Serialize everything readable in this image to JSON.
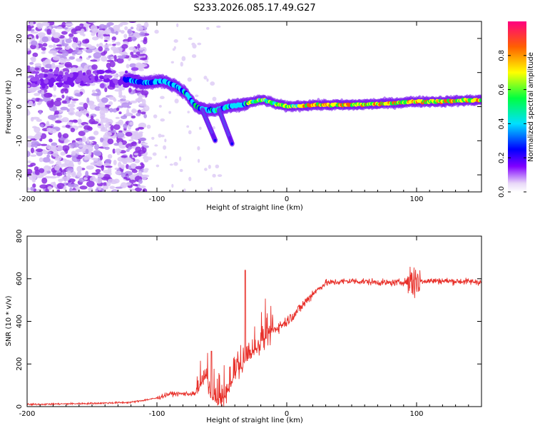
{
  "title": "S233.2026.085.17.49.G27",
  "colors": {
    "snr_line": "#e8302a",
    "axis": "#000000",
    "background": "#ffffff"
  },
  "chart_data": [
    {
      "type": "heatmap",
      "xlabel": "Height of straight line (km)",
      "ylabel": "Frequency (Hz)",
      "xlim": [
        -200,
        150
      ],
      "ylim": [
        -25,
        25
      ],
      "xticks": [
        "-200",
        "-100",
        "0",
        "100"
      ],
      "yticks": [
        "20",
        "10",
        "0",
        "-10",
        "-20"
      ],
      "colorbar": {
        "label": "Normalized spectral amplitude",
        "range": [
          0,
          1
        ],
        "ticks": [
          "0.0",
          "0.2",
          "0.4",
          "0.6",
          "0.8"
        ]
      },
      "ridge": {
        "description_points_x": [
          -125,
          -110,
          -95,
          -85,
          -78,
          -70,
          -62,
          -55,
          -45,
          -35,
          -25,
          -18,
          -10,
          0,
          20,
          50,
          80,
          100,
          120,
          150
        ],
        "frequency_hz": [
          8,
          7,
          7.5,
          6,
          4,
          0,
          -1,
          -1,
          0,
          0.5,
          1.5,
          2,
          1,
          0,
          0.5,
          0.5,
          1,
          1.5,
          1.5,
          2
        ]
      }
    },
    {
      "type": "line",
      "xlabel": "Height of straight line (km)",
      "ylabel": "SNR (10 * v/v)",
      "xlim": [
        -200,
        150
      ],
      "ylim": [
        0,
        800
      ],
      "xticks": [
        "-200",
        "-100",
        "0",
        "100"
      ],
      "yticks": [
        "800",
        "600",
        "400",
        "200",
        "0"
      ],
      "trend_x": [
        -200,
        -150,
        -120,
        -100,
        -90,
        -70,
        -62,
        -58,
        -50,
        -45,
        -40,
        -35,
        -30,
        -20,
        -10,
        0,
        10,
        20,
        30,
        50,
        80,
        100,
        120,
        150
      ],
      "trend_y": [
        10,
        15,
        20,
        40,
        60,
        60,
        140,
        40,
        20,
        80,
        150,
        180,
        220,
        300,
        360,
        400,
        460,
        530,
        580,
        590,
        580,
        590,
        590,
        585
      ]
    }
  ]
}
